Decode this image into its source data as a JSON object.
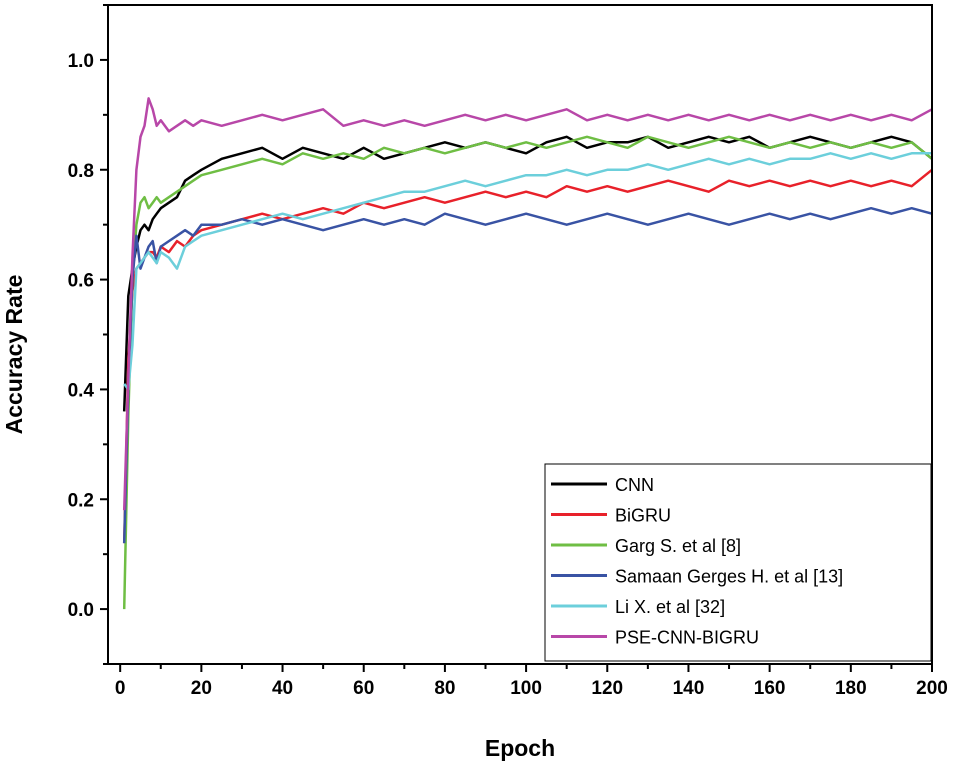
{
  "chart_data": {
    "type": "line",
    "xlabel": "Epoch",
    "ylabel": "Accuracy Rate",
    "xlim": [
      -3,
      200
    ],
    "ylim": [
      -0.1,
      1.1
    ],
    "xticks": [
      0,
      20,
      40,
      60,
      80,
      100,
      120,
      140,
      160,
      180,
      200
    ],
    "xtick_labels": [
      "0",
      "20",
      "40",
      "60",
      "80",
      "100",
      "120",
      "140",
      "160",
      "180",
      "200"
    ],
    "yticks": [
      0.0,
      0.2,
      0.4,
      0.6,
      0.8,
      1.0
    ],
    "ytick_labels": [
      "0.0",
      "0.2",
      "0.4",
      "0.6",
      "0.8",
      "1.0"
    ],
    "grid": false,
    "legend_position": "bottom-right",
    "x": [
      1,
      2,
      3,
      4,
      5,
      6,
      7,
      8,
      9,
      10,
      12,
      14,
      16,
      18,
      20,
      25,
      30,
      35,
      40,
      45,
      50,
      55,
      60,
      65,
      70,
      75,
      80,
      85,
      90,
      95,
      100,
      105,
      110,
      115,
      120,
      125,
      130,
      135,
      140,
      145,
      150,
      155,
      160,
      165,
      170,
      175,
      180,
      185,
      190,
      195,
      200
    ],
    "series": [
      {
        "name": "CNN",
        "color": "#000000",
        "values": [
          0.36,
          0.57,
          0.62,
          0.66,
          0.69,
          0.7,
          0.69,
          0.71,
          0.72,
          0.73,
          0.74,
          0.75,
          0.78,
          0.79,
          0.8,
          0.82,
          0.83,
          0.84,
          0.82,
          0.84,
          0.83,
          0.82,
          0.84,
          0.82,
          0.83,
          0.84,
          0.85,
          0.84,
          0.85,
          0.84,
          0.83,
          0.85,
          0.86,
          0.84,
          0.85,
          0.85,
          0.86,
          0.84,
          0.85,
          0.86,
          0.85,
          0.86,
          0.84,
          0.85,
          0.86,
          0.85,
          0.84,
          0.85,
          0.86,
          0.85,
          0.82
        ]
      },
      {
        "name": "BiGRU",
        "color": "#e8212a",
        "values": [
          0.12,
          0.45,
          0.58,
          0.62,
          0.63,
          0.64,
          0.65,
          0.65,
          0.64,
          0.66,
          0.65,
          0.67,
          0.66,
          0.68,
          0.69,
          0.7,
          0.71,
          0.72,
          0.71,
          0.72,
          0.73,
          0.72,
          0.74,
          0.73,
          0.74,
          0.75,
          0.74,
          0.75,
          0.76,
          0.75,
          0.76,
          0.75,
          0.77,
          0.76,
          0.77,
          0.76,
          0.77,
          0.78,
          0.77,
          0.76,
          0.78,
          0.77,
          0.78,
          0.77,
          0.78,
          0.77,
          0.78,
          0.77,
          0.78,
          0.77,
          0.8
        ]
      },
      {
        "name": "Garg S. et al [8]",
        "color": "#6fbe44",
        "values": [
          0.0,
          0.35,
          0.6,
          0.7,
          0.74,
          0.75,
          0.73,
          0.74,
          0.75,
          0.74,
          0.75,
          0.76,
          0.77,
          0.78,
          0.79,
          0.8,
          0.81,
          0.82,
          0.81,
          0.83,
          0.82,
          0.83,
          0.82,
          0.84,
          0.83,
          0.84,
          0.83,
          0.84,
          0.85,
          0.84,
          0.85,
          0.84,
          0.85,
          0.86,
          0.85,
          0.84,
          0.86,
          0.85,
          0.84,
          0.85,
          0.86,
          0.85,
          0.84,
          0.85,
          0.84,
          0.85,
          0.84,
          0.85,
          0.84,
          0.85,
          0.82
        ]
      },
      {
        "name": "Samaan Gerges H. et al [13]",
        "color": "#3953a4",
        "values": [
          0.12,
          0.4,
          0.6,
          0.68,
          0.62,
          0.64,
          0.66,
          0.67,
          0.63,
          0.66,
          0.67,
          0.68,
          0.69,
          0.68,
          0.7,
          0.7,
          0.71,
          0.7,
          0.71,
          0.7,
          0.69,
          0.7,
          0.71,
          0.7,
          0.71,
          0.7,
          0.72,
          0.71,
          0.7,
          0.71,
          0.72,
          0.71,
          0.7,
          0.71,
          0.72,
          0.71,
          0.7,
          0.71,
          0.72,
          0.71,
          0.7,
          0.71,
          0.72,
          0.71,
          0.72,
          0.71,
          0.72,
          0.73,
          0.72,
          0.73,
          0.72
        ]
      },
      {
        "name": "Li X. et al [32]",
        "color": "#6ccfdb",
        "values": [
          0.41,
          0.4,
          0.48,
          0.62,
          0.63,
          0.64,
          0.65,
          0.64,
          0.63,
          0.65,
          0.64,
          0.62,
          0.66,
          0.67,
          0.68,
          0.69,
          0.7,
          0.71,
          0.72,
          0.71,
          0.72,
          0.73,
          0.74,
          0.75,
          0.76,
          0.76,
          0.77,
          0.78,
          0.77,
          0.78,
          0.79,
          0.79,
          0.8,
          0.79,
          0.8,
          0.8,
          0.81,
          0.8,
          0.81,
          0.82,
          0.81,
          0.82,
          0.81,
          0.82,
          0.82,
          0.83,
          0.82,
          0.83,
          0.82,
          0.83,
          0.83
        ]
      },
      {
        "name": "PSE-CNN-BIGRU",
        "color": "#b847a8",
        "values": [
          0.18,
          0.42,
          0.64,
          0.8,
          0.86,
          0.88,
          0.93,
          0.91,
          0.88,
          0.89,
          0.87,
          0.88,
          0.89,
          0.88,
          0.89,
          0.88,
          0.89,
          0.9,
          0.89,
          0.9,
          0.91,
          0.88,
          0.89,
          0.88,
          0.89,
          0.88,
          0.89,
          0.9,
          0.89,
          0.9,
          0.89,
          0.9,
          0.91,
          0.89,
          0.9,
          0.89,
          0.9,
          0.89,
          0.9,
          0.89,
          0.9,
          0.89,
          0.9,
          0.89,
          0.9,
          0.89,
          0.9,
          0.89,
          0.9,
          0.89,
          0.91
        ]
      }
    ]
  }
}
